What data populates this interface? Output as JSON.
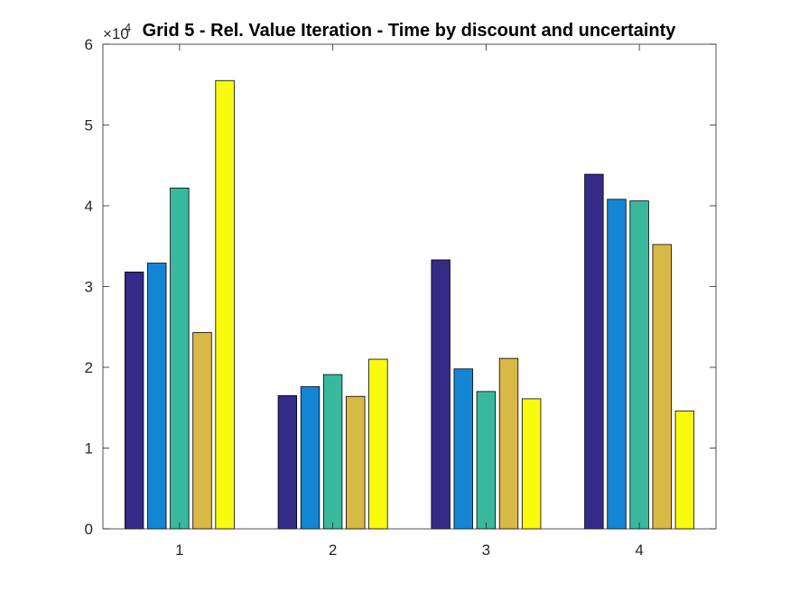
{
  "chart_data": {
    "type": "bar",
    "title": "Grid 5 - Rel. Value Iteration - Time by discount and uncertainty",
    "categories": [
      "1",
      "2",
      "3",
      "4"
    ],
    "series": [
      {
        "color": "#352a87",
        "values": [
          31800,
          16500,
          33300,
          43900
        ]
      },
      {
        "color": "#1485d4",
        "values": [
          32900,
          17600,
          19800,
          40800
        ]
      },
      {
        "color": "#38b99e",
        "values": [
          42200,
          19100,
          17000,
          40600
        ]
      },
      {
        "color": "#d9b946",
        "values": [
          24300,
          16400,
          21100,
          35200
        ]
      },
      {
        "color": "#f9fb0e",
        "values": [
          55500,
          21000,
          16100,
          14600
        ]
      }
    ],
    "ylim": [
      0,
      60000
    ],
    "yticks": [
      "0",
      "1",
      "2",
      "3",
      "4",
      "5",
      "6"
    ],
    "yticks_values": [
      0,
      10000,
      20000,
      30000,
      40000,
      50000,
      60000
    ],
    "y_exponent_base": "×10",
    "y_exponent": "4",
    "xlabel": "",
    "ylabel": "",
    "grid": false
  }
}
